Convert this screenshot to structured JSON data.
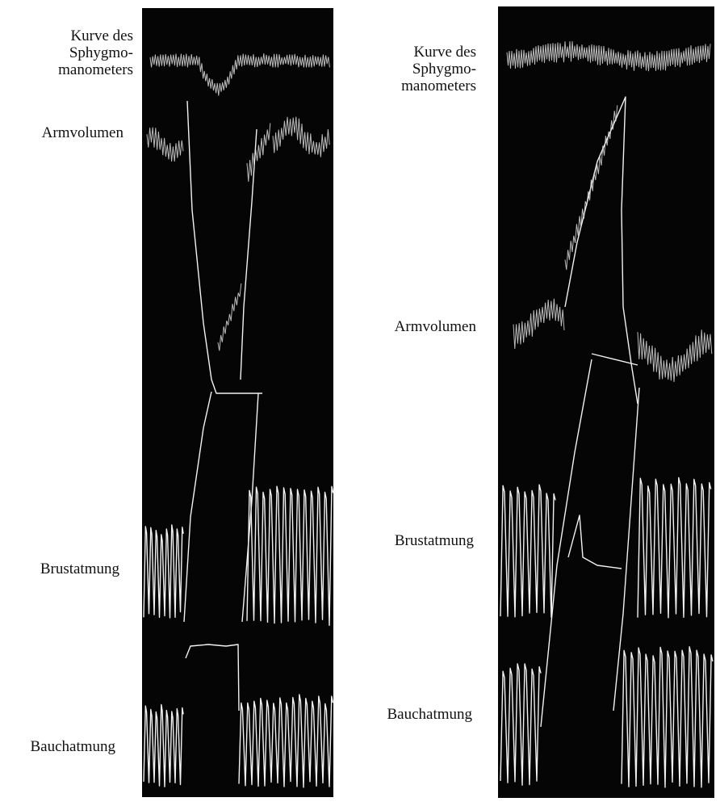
{
  "panels": [
    {
      "labels": [
        {
          "lines": [
            "Kurve des",
            "Sphygmo-",
            "manometers"
          ]
        },
        {
          "lines": [
            "Armvolumen"
          ]
        },
        {
          "lines": [
            "Brustatmung"
          ]
        },
        {
          "lines": [
            "Bauchatmung"
          ]
        }
      ]
    },
    {
      "labels": [
        {
          "lines": [
            "Kurve des",
            "Sphygmo-",
            "manometers"
          ]
        },
        {
          "lines": [
            "Armvolumen"
          ]
        },
        {
          "lines": [
            "Brustatmung"
          ]
        },
        {
          "lines": [
            "Bauchatmung"
          ]
        }
      ]
    }
  ]
}
